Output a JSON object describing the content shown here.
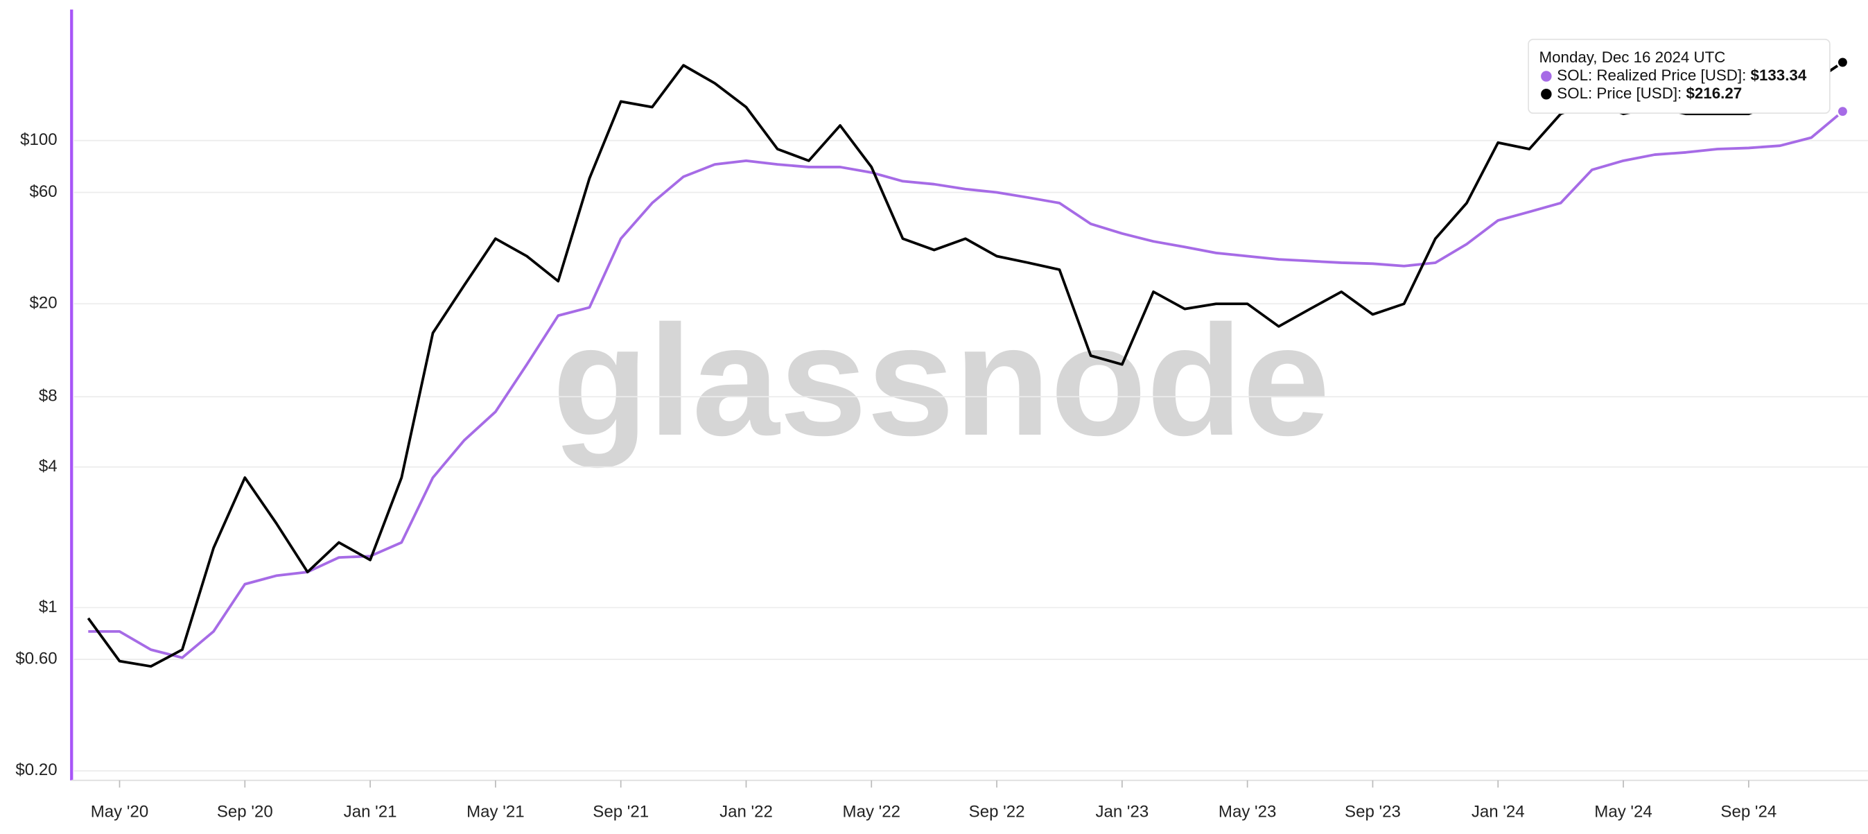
{
  "chart_data": {
    "type": "line",
    "watermark": "glassnode",
    "log_scale": true,
    "grid": true,
    "ylim": [
      0.182,
      364
    ],
    "yticks": [
      {
        "value": 0.2,
        "label": "$0.20"
      },
      {
        "value": 0.6,
        "label": "$0.60"
      },
      {
        "value": 1,
        "label": "$1"
      },
      {
        "value": 4,
        "label": "$4"
      },
      {
        "value": 8,
        "label": "$8"
      },
      {
        "value": 20,
        "label": "$20"
      },
      {
        "value": 60,
        "label": "$60"
      },
      {
        "value": 100,
        "label": "$100"
      }
    ],
    "xticks": [
      {
        "value": "2020-05",
        "label": "May '20"
      },
      {
        "value": "2020-09",
        "label": "Sep '20"
      },
      {
        "value": "2021-01",
        "label": "Jan '21"
      },
      {
        "value": "2021-05",
        "label": "May '21"
      },
      {
        "value": "2021-09",
        "label": "Sep '21"
      },
      {
        "value": "2022-01",
        "label": "Jan '22"
      },
      {
        "value": "2022-05",
        "label": "May '22"
      },
      {
        "value": "2022-09",
        "label": "Sep '22"
      },
      {
        "value": "2023-01",
        "label": "Jan '23"
      },
      {
        "value": "2023-05",
        "label": "May '23"
      },
      {
        "value": "2023-09",
        "label": "Sep '23"
      },
      {
        "value": "2024-01",
        "label": "Jan '24"
      },
      {
        "value": "2024-05",
        "label": "May '24"
      },
      {
        "value": "2024-09",
        "label": "Sep '24"
      }
    ],
    "x": [
      "2020-04",
      "2020-05",
      "2020-06",
      "2020-07",
      "2020-08",
      "2020-09",
      "2020-10",
      "2020-11",
      "2020-12",
      "2021-01",
      "2021-02",
      "2021-03",
      "2021-04",
      "2021-05",
      "2021-06",
      "2021-07",
      "2021-08",
      "2021-09",
      "2021-10",
      "2021-11",
      "2021-12",
      "2022-01",
      "2022-02",
      "2022-03",
      "2022-04",
      "2022-05",
      "2022-06",
      "2022-07",
      "2022-08",
      "2022-09",
      "2022-10",
      "2022-11",
      "2022-12",
      "2023-01",
      "2023-02",
      "2023-03",
      "2023-04",
      "2023-05",
      "2023-06",
      "2023-07",
      "2023-08",
      "2023-09",
      "2023-10",
      "2023-11",
      "2023-12",
      "2024-01",
      "2024-02",
      "2024-03",
      "2024-04",
      "2024-05",
      "2024-06",
      "2024-07",
      "2024-08",
      "2024-09",
      "2024-10",
      "2024-11",
      "2024-12"
    ],
    "series": [
      {
        "name": "SOL: Realized Price [USD]",
        "color": "#a66be6",
        "values": [
          0.79,
          0.79,
          0.66,
          0.61,
          0.79,
          1.26,
          1.37,
          1.42,
          1.64,
          1.66,
          1.9,
          3.6,
          5.2,
          6.9,
          11,
          17.8,
          19.3,
          38,
          54,
          70,
          79,
          82,
          79,
          77,
          77,
          73,
          67,
          65,
          62,
          60,
          57,
          54,
          44,
          40,
          37,
          35,
          33,
          32,
          31,
          30.5,
          30,
          29.7,
          29,
          30,
          36,
          45.5,
          49.5,
          54,
          75,
          82,
          87,
          89,
          92,
          93,
          95,
          103,
          133.34
        ]
      },
      {
        "name": "SOL: Price [USD]",
        "color": "#000000",
        "values": [
          0.9,
          0.59,
          0.56,
          0.66,
          1.8,
          3.6,
          2.3,
          1.42,
          1.9,
          1.6,
          3.6,
          15,
          24,
          38,
          32,
          25,
          69,
          147,
          139,
          210,
          176,
          139,
          92,
          82,
          116,
          77,
          38,
          34,
          38,
          32,
          30,
          28,
          12,
          11,
          22.5,
          19,
          20,
          20,
          16,
          19,
          22.5,
          18,
          20,
          38,
          54,
          98,
          92,
          130,
          147,
          130,
          139,
          130,
          130,
          130,
          147,
          176,
          216.27
        ]
      }
    ],
    "tooltip": {
      "date": "Monday, Dec 16 2024 UTC",
      "value_labels": [
        "$133.34",
        "$216.27"
      ]
    }
  }
}
